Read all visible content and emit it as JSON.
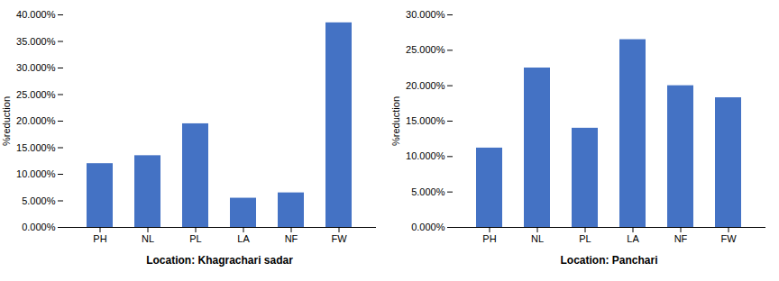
{
  "chart_data": [
    {
      "type": "bar",
      "categories": [
        "PH",
        "NL",
        "PL",
        "LA",
        "NF",
        "FW"
      ],
      "values": [
        0.12,
        0.135,
        0.195,
        0.055,
        0.065,
        0.385
      ],
      "xlabel": "Location: Khagrachari sadar",
      "ylabel": "%reduction",
      "color": "#4472C4",
      "ylim": [
        0,
        0.4
      ],
      "yticks": [
        {
          "value": 0.0,
          "label": "0.000%"
        },
        {
          "value": 0.05,
          "label": "5.000%"
        },
        {
          "value": 0.1,
          "label": "10.000%"
        },
        {
          "value": 0.15,
          "label": "15.000%"
        },
        {
          "value": 0.2,
          "label": "20.000%"
        },
        {
          "value": 0.25,
          "label": "25.000%"
        },
        {
          "value": 0.3,
          "label": "30.000%"
        },
        {
          "value": 0.35,
          "label": "35.000%"
        },
        {
          "value": 0.4,
          "label": "40.000%"
        }
      ],
      "grid": false
    },
    {
      "type": "bar",
      "categories": [
        "PH",
        "NL",
        "PL",
        "LA",
        "NF",
        "FW"
      ],
      "values": [
        0.112,
        0.225,
        0.14,
        0.265,
        0.2,
        0.183
      ],
      "xlabel": "Location: Panchari",
      "ylabel": "%reduction",
      "color": "#4472C4",
      "ylim": [
        0,
        0.3
      ],
      "yticks": [
        {
          "value": 0.0,
          "label": "0.000%"
        },
        {
          "value": 0.05,
          "label": "5.000%"
        },
        {
          "value": 0.1,
          "label": "10.000%"
        },
        {
          "value": 0.15,
          "label": "15.000%"
        },
        {
          "value": 0.2,
          "label": "20.000%"
        },
        {
          "value": 0.25,
          "label": "25.000%"
        },
        {
          "value": 0.3,
          "label": "30.000%"
        }
      ],
      "grid": false
    }
  ]
}
